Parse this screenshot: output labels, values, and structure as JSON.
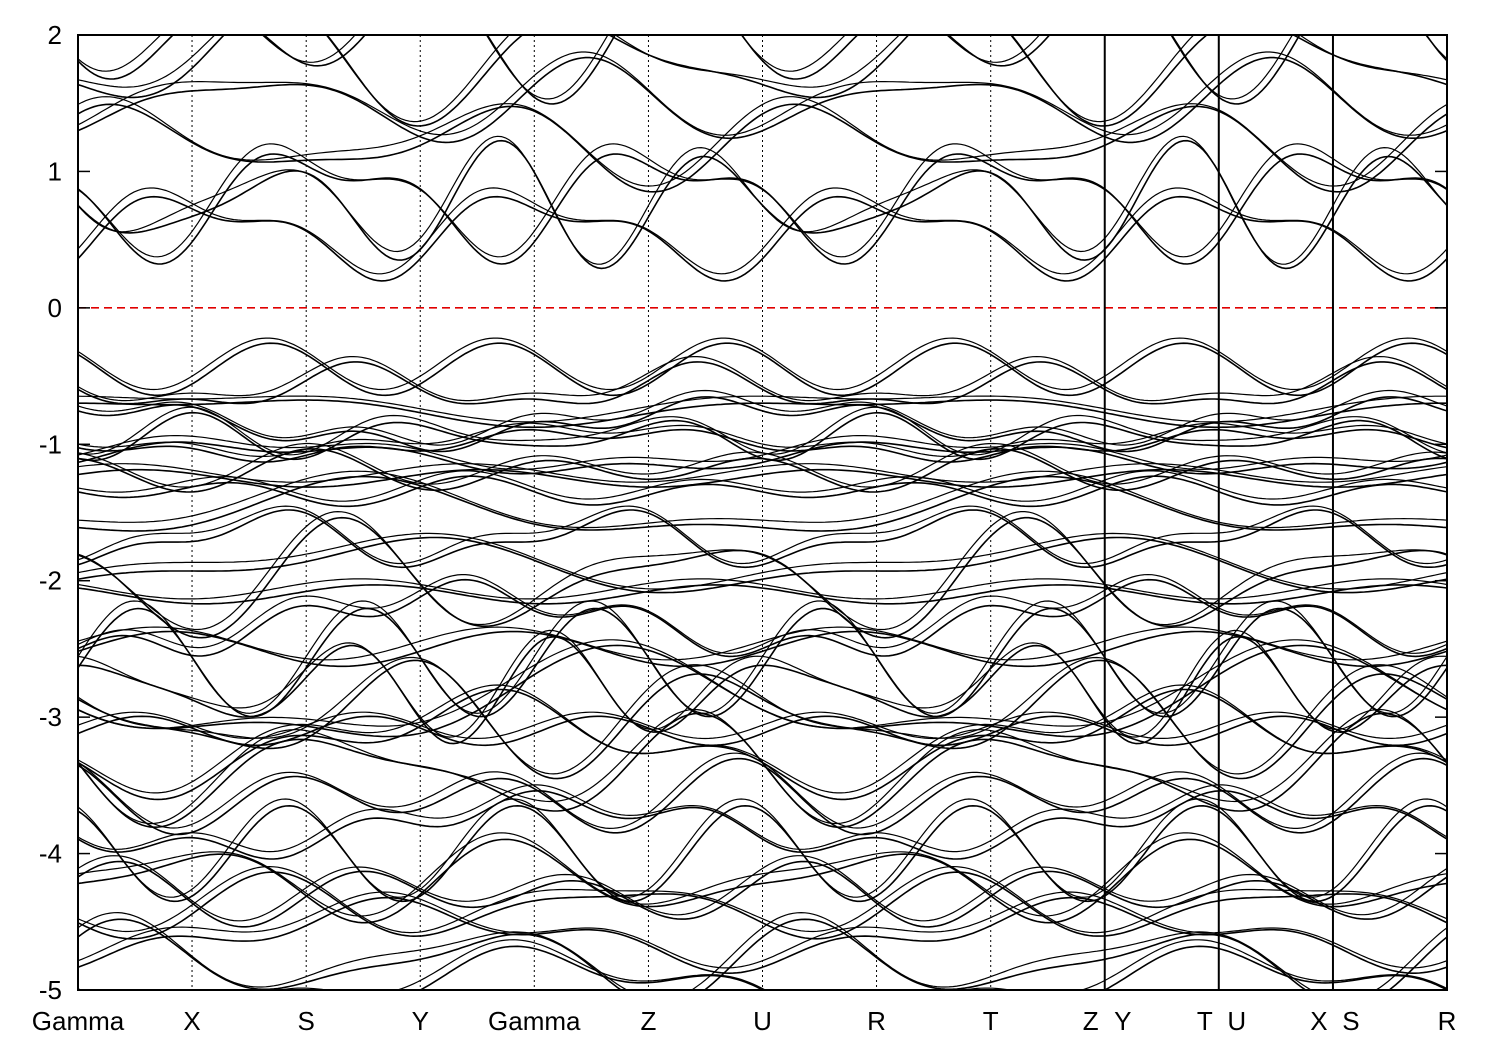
{
  "chart_data": {
    "type": "line",
    "title": "",
    "xlabel": "",
    "ylabel": "",
    "ylim": [
      -5,
      2
    ],
    "yticks": [
      -5,
      -4,
      -3,
      -2,
      -1,
      0,
      1,
      2
    ],
    "ytick_labels": [
      "-5",
      "-4",
      "-3",
      "-2",
      "-1",
      "0",
      "1",
      "2"
    ],
    "kpath_labels": [
      "Gamma",
      "X",
      "S",
      "Y",
      "Gamma",
      "Z",
      "U",
      "R",
      "T",
      "Z",
      "Y",
      "T",
      "U",
      "X",
      "S",
      "R"
    ],
    "kpath_segments": [
      [
        "Gamma",
        "X",
        "S",
        "Y",
        "Gamma",
        "Z",
        "U",
        "R",
        "T",
        "Z"
      ],
      [
        "Y",
        "T"
      ],
      [
        "U",
        "X"
      ],
      [
        "S",
        "R"
      ]
    ],
    "grid": "vertical dotted lines at high-symmetry points",
    "fermi_level": {
      "value": 0,
      "color": "#e00000",
      "style": "dashed"
    },
    "line_color": "#000000",
    "band_groups": [
      {
        "name": "",
        "energies": [
          -5.0,
          -4.8,
          -4.6,
          -4.4,
          -4.3,
          -4.2,
          -4.0
        ]
      },
      {
        "name": "",
        "energies": [
          -3.8,
          -3.6,
          -3.4,
          -3.2,
          -3.1,
          -3.0,
          -2.9
        ]
      },
      {
        "name": "",
        "energies": [
          -2.8,
          -2.6,
          -2.5,
          -2.3,
          -2.1,
          -2.0,
          -1.9,
          -1.7,
          -1.5
        ]
      },
      {
        "name": "",
        "energies": [
          -1.35,
          -1.25,
          -1.2,
          -1.1,
          -1.0,
          -0.95,
          -0.85,
          -0.75,
          -0.6,
          -0.45
        ]
      },
      {
        "name": "",
        "energies": [
          0.55,
          0.75,
          0.8,
          1.2,
          1.5,
          1.8,
          2.0
        ]
      }
    ]
  }
}
